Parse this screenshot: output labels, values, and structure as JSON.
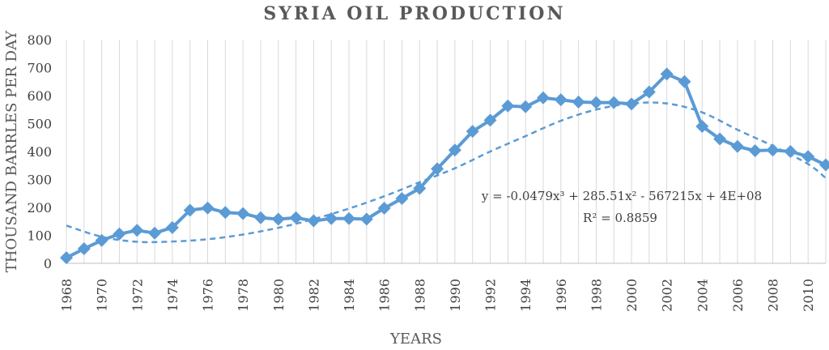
{
  "chart_data": {
    "type": "line",
    "title": "SYRIA OIL PRODUCTION",
    "xlabel": "YEARS",
    "ylabel": "THOUSAND BARRLES PER DAY",
    "ylim": [
      0,
      800
    ],
    "yticks": [
      0,
      100,
      200,
      300,
      400,
      500,
      600,
      700,
      800
    ],
    "xlim": [
      1968,
      2011
    ],
    "xtick_labels": [
      "1968",
      "1970",
      "1972",
      "1974",
      "1976",
      "1978",
      "1980",
      "1982",
      "1984",
      "1986",
      "1988",
      "1990",
      "1992",
      "1994",
      "1996",
      "1998",
      "2000",
      "2002",
      "2004",
      "2006",
      "2008",
      "2010"
    ],
    "grid": "vertical",
    "series": [
      {
        "color": "#5b9bd5",
        "marker": "diamond",
        "x": [
          1968,
          1969,
          1970,
          1971,
          1972,
          1973,
          1974,
          1975,
          1976,
          1977,
          1978,
          1979,
          1980,
          1981,
          1982,
          1983,
          1984,
          1985,
          1986,
          1987,
          1988,
          1989,
          1990,
          1991,
          1992,
          1993,
          1994,
          1995,
          1996,
          1997,
          1998,
          1999,
          2000,
          2001,
          2002,
          2003,
          2004,
          2005,
          2006,
          2007,
          2008,
          2009,
          2010,
          2011
        ],
        "y": [
          20,
          52,
          82,
          105,
          118,
          108,
          128,
          190,
          198,
          182,
          178,
          163,
          158,
          163,
          152,
          160,
          160,
          158,
          197,
          232,
          268,
          338,
          405,
          472,
          512,
          563,
          560,
          592,
          585,
          577,
          575,
          575,
          570,
          613,
          677,
          650,
          490,
          445,
          418,
          403,
          405,
          400,
          382,
          352
        ]
      }
    ],
    "trendline": {
      "type": "polynomial",
      "order": 3,
      "color": "#5b9bd5",
      "x": [
        1968,
        1970,
        1972,
        1974,
        1976,
        1978,
        1980,
        1982,
        1984,
        1986,
        1988,
        1990,
        1992,
        1994,
        1996,
        1998,
        2000,
        2002,
        2004,
        2006,
        2008,
        2010,
        2011
      ],
      "y": [
        135,
        95,
        77,
        78,
        86,
        103,
        127,
        158,
        196,
        240,
        290,
        340,
        400,
        455,
        510,
        550,
        572,
        572,
        540,
        478,
        420,
        355,
        305
      ],
      "equation": "y = -0.0479x³ + 285.51x² - 567215x + 4E+08",
      "r2": "R² = 0.8859"
    }
  }
}
